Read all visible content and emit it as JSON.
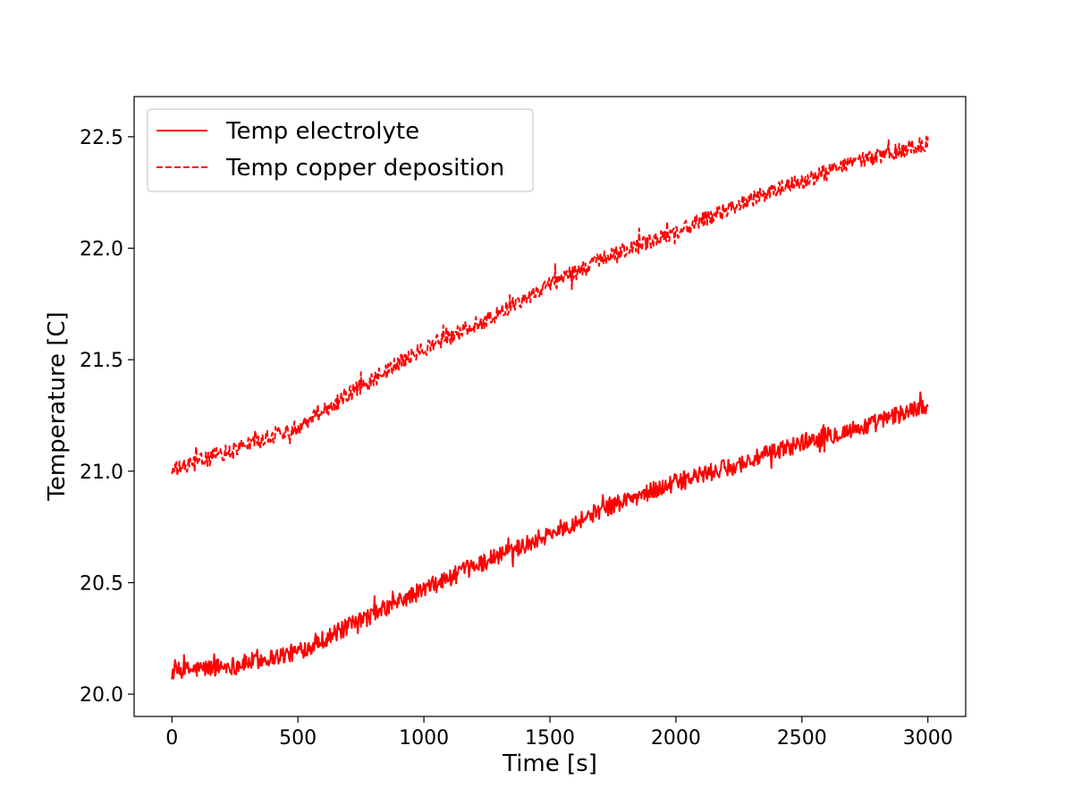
{
  "chart_data": {
    "type": "line",
    "title": "",
    "xlabel": "Time [s]",
    "ylabel": "Temperature [C]",
    "xlim": [
      -150,
      3150
    ],
    "ylim": [
      19.9,
      22.68
    ],
    "xticks": [
      0,
      500,
      1000,
      1500,
      2000,
      2500,
      3000
    ],
    "xtick_labels": [
      "0",
      "500",
      "1000",
      "1500",
      "2000",
      "2500",
      "3000"
    ],
    "yticks": [
      20.0,
      20.5,
      21.0,
      21.5,
      22.0,
      22.5
    ],
    "ytick_labels": [
      "20.0",
      "20.5",
      "21.0",
      "21.5",
      "22.0",
      "22.5"
    ],
    "grid": false,
    "legend_position": "top-left",
    "series": [
      {
        "name": "Temp electrolyte",
        "color": "#ff0000",
        "style": "solid",
        "x": [
          0,
          250,
          500,
          750,
          1000,
          1250,
          1500,
          1750,
          2000,
          2250,
          2500,
          2750,
          3000
        ],
        "y": [
          20.1,
          20.13,
          20.19,
          20.33,
          20.47,
          20.6,
          20.72,
          20.85,
          20.95,
          21.03,
          21.13,
          21.2,
          21.3
        ],
        "noise": 0.04
      },
      {
        "name": "Temp copper deposition",
        "color": "#ff0000",
        "style": "dashed",
        "x": [
          0,
          250,
          500,
          750,
          1000,
          1250,
          1500,
          1750,
          2000,
          2250,
          2500,
          2750,
          3000
        ],
        "y": [
          21.0,
          21.1,
          21.2,
          21.38,
          21.55,
          21.68,
          21.84,
          21.97,
          22.07,
          22.2,
          22.3,
          22.4,
          22.47
        ],
        "noise": 0.035
      }
    ]
  }
}
